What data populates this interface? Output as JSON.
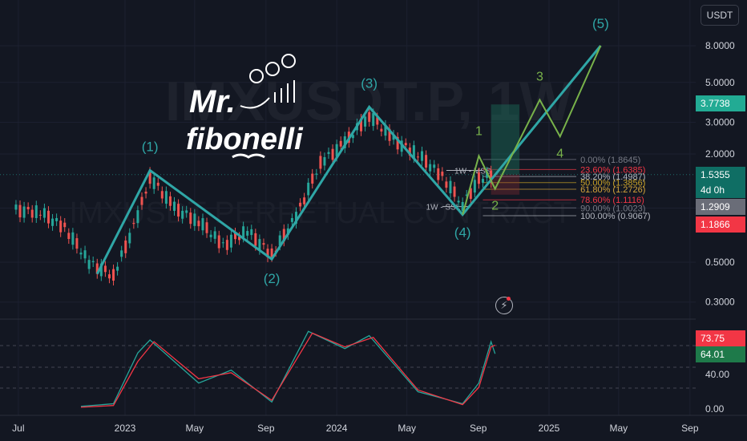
{
  "toolbar": {
    "currency_label": "USDT"
  },
  "watermark": {
    "symbol": "IMXUSDT.P, 1W",
    "sub": "IMXUSDT PERPETUAL CONTRACT"
  },
  "logo": {
    "line1": "Mr.",
    "line2": "fibonelli"
  },
  "price_scale": {
    "ticks": [
      "8.0000",
      "5.0000",
      "3.0000",
      "2.0000",
      "1.0000",
      "0.5000",
      "0.3000"
    ],
    "badges": {
      "target": "3.7738",
      "last": "1.5355",
      "countdown": "4d 0h",
      "gray": "1.2909",
      "stop": "1.1866"
    }
  },
  "osc_scale": {
    "ticks": [
      "40.00",
      "0.00"
    ],
    "badges": {
      "red": "73.75",
      "green": "64.01"
    }
  },
  "time_axis": [
    "Jul",
    "2023",
    "May",
    "Sep",
    "2024",
    "May",
    "Sep",
    "2025",
    "May",
    "Sep"
  ],
  "waves": {
    "major": [
      "(1)",
      "(2)",
      "(3)",
      "(4)",
      "(5)"
    ],
    "minor": [
      "1",
      "2",
      "3",
      "4"
    ]
  },
  "fib_levels": [
    {
      "label": "0.00% (1.8645)",
      "color": "#787b86"
    },
    {
      "label": "23.60% (1.6385)",
      "color": "#f23645"
    },
    {
      "label": "38.20% (1.4987)",
      "color": "#b2b5be"
    },
    {
      "label": "50.00% (1.3856)",
      "color": "#c9a227"
    },
    {
      "label": "61.80% (1.2726)",
      "color": "#d4a43a"
    },
    {
      "label": "78.60% (1.1116)",
      "color": "#f23645"
    },
    {
      "label": "90.00% (1.0023)",
      "color": "#787b86"
    },
    {
      "label": "100.00% (0.9067)",
      "color": "#b2b5be"
    }
  ],
  "annotations": {
    "mss": "1W - MSS",
    "ssl": "1W - SSL"
  },
  "colors": {
    "bg": "#131722",
    "up": "#26a69a",
    "down": "#ef5350",
    "wave_major": "#2fa6a6",
    "wave_minor": "#78b24a",
    "stoch_k": "#26a69a",
    "stoch_d": "#f23645"
  },
  "chart_data": {
    "type": "candlestick",
    "title": "",
    "ylim": [
      0.25,
      9.5
    ],
    "y_scale": "log",
    "oscillator_ylim": [
      0,
      100
    ],
    "grid": true,
    "wave_path_major": [
      {
        "x": "2022-11-14",
        "y": 0.43
      },
      {
        "x": "2023-02-13",
        "y": 1.62
      },
      {
        "x": "2023-09-11",
        "y": 0.52
      },
      {
        "x": "2024-02-26",
        "y": 3.65
      },
      {
        "x": "2024-08-05",
        "y": 0.92
      },
      {
        "x": "2025-03-31",
        "y": 8.0
      }
    ],
    "wave_path_minor": [
      {
        "x": "2024-08-05",
        "y": 0.92
      },
      {
        "x": "2024-09-02",
        "y": 1.95
      },
      {
        "x": "2024-09-30",
        "y": 1.28
      },
      {
        "x": "2024-12-16",
        "y": 4.0
      },
      {
        "x": "2025-01-20",
        "y": 2.5
      },
      {
        "x": "2025-03-31",
        "y": 8.0
      }
    ],
    "price_series_close": [
      {
        "x": "2022-06-27",
        "y": 0.98
      },
      {
        "x": "2022-08-08",
        "y": 0.95
      },
      {
        "x": "2022-09-19",
        "y": 0.78
      },
      {
        "x": "2022-10-31",
        "y": 0.5
      },
      {
        "x": "2022-12-12",
        "y": 0.42
      },
      {
        "x": "2023-01-23",
        "y": 0.9
      },
      {
        "x": "2023-02-13",
        "y": 1.5
      },
      {
        "x": "2023-03-27",
        "y": 1.0
      },
      {
        "x": "2023-05-08",
        "y": 0.85
      },
      {
        "x": "2023-06-19",
        "y": 0.62
      },
      {
        "x": "2023-07-31",
        "y": 0.75
      },
      {
        "x": "2023-09-11",
        "y": 0.55
      },
      {
        "x": "2023-10-23",
        "y": 0.9
      },
      {
        "x": "2023-12-04",
        "y": 1.8
      },
      {
        "x": "2024-01-15",
        "y": 2.3
      },
      {
        "x": "2024-02-26",
        "y": 3.3
      },
      {
        "x": "2024-04-08",
        "y": 2.4
      },
      {
        "x": "2024-05-20",
        "y": 2.0
      },
      {
        "x": "2024-07-01",
        "y": 1.5
      },
      {
        "x": "2024-08-05",
        "y": 1.05
      },
      {
        "x": "2024-09-02",
        "y": 1.45
      },
      {
        "x": "2024-09-30",
        "y": 1.53
      }
    ],
    "stoch_k": [
      {
        "x": "2022-10-17",
        "y": 3
      },
      {
        "x": "2022-12-12",
        "y": 6
      },
      {
        "x": "2023-01-23",
        "y": 65
      },
      {
        "x": "2023-02-13",
        "y": 80
      },
      {
        "x": "2023-05-08",
        "y": 30
      },
      {
        "x": "2023-07-03",
        "y": 45
      },
      {
        "x": "2023-09-11",
        "y": 8
      },
      {
        "x": "2023-11-13",
        "y": 90
      },
      {
        "x": "2024-01-15",
        "y": 70
      },
      {
        "x": "2024-02-26",
        "y": 85
      },
      {
        "x": "2024-05-20",
        "y": 20
      },
      {
        "x": "2024-08-05",
        "y": 6
      },
      {
        "x": "2024-09-02",
        "y": 30
      },
      {
        "x": "2024-09-23",
        "y": 78
      },
      {
        "x": "2024-09-30",
        "y": 64
      }
    ],
    "stoch_d": [
      {
        "x": "2022-10-17",
        "y": 2
      },
      {
        "x": "2022-12-12",
        "y": 4
      },
      {
        "x": "2023-01-23",
        "y": 55
      },
      {
        "x": "2023-02-20",
        "y": 78
      },
      {
        "x": "2023-05-08",
        "y": 35
      },
      {
        "x": "2023-07-03",
        "y": 42
      },
      {
        "x": "2023-09-11",
        "y": 10
      },
      {
        "x": "2023-11-20",
        "y": 88
      },
      {
        "x": "2024-01-15",
        "y": 72
      },
      {
        "x": "2024-03-04",
        "y": 83
      },
      {
        "x": "2024-05-20",
        "y": 22
      },
      {
        "x": "2024-08-05",
        "y": 5
      },
      {
        "x": "2024-09-02",
        "y": 25
      },
      {
        "x": "2024-09-23",
        "y": 72
      },
      {
        "x": "2024-09-30",
        "y": 74
      }
    ]
  }
}
